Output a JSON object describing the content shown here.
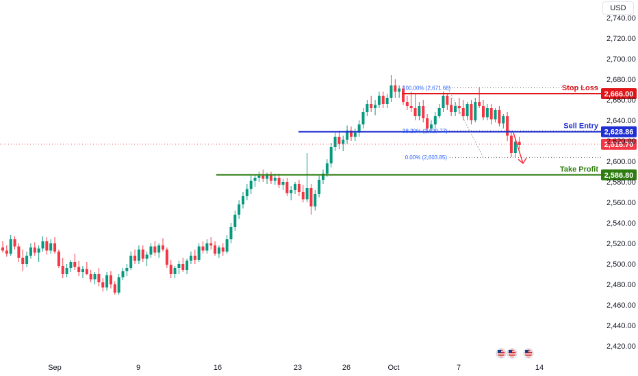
{
  "currency": "USD",
  "colors": {
    "up": "#089981",
    "down": "#f23645",
    "stop_loss": "#e0161b",
    "sell_entry": "#1f2fd1",
    "take_profit": "#2f7d11",
    "current": "#f23645",
    "fib": "#2962ff"
  },
  "chart_data": {
    "type": "candlestick",
    "title": "",
    "y_ticks": [
      "2,740.00",
      "2,720.00",
      "2,700.00",
      "2,680.00",
      "2,660.00",
      "2,640.00",
      "2,620.00",
      "2,600.00",
      "2,580.00",
      "2,560.00",
      "2,540.00",
      "2,520.00",
      "2,500.00",
      "2,480.00",
      "2,460.00",
      "2,440.00",
      "2,420.00"
    ],
    "y_tick_values": [
      2740,
      2720,
      2700,
      2680,
      2660,
      2640,
      2620,
      2600,
      2580,
      2560,
      2540,
      2520,
      2500,
      2480,
      2460,
      2440,
      2420
    ],
    "ylim": [
      2412,
      2752
    ],
    "x_ticks": [
      {
        "label": "Sep",
        "date": "2024-09-01"
      },
      {
        "label": "9",
        "date": "2024-09-09"
      },
      {
        "label": "16",
        "date": "2024-09-16"
      },
      {
        "label": "23",
        "date": "2024-09-23"
      },
      {
        "label": "26",
        "date": "2024-09-26"
      },
      {
        "label": "Oct",
        "date": "2024-10-01"
      },
      {
        "label": "7",
        "date": "2024-10-07"
      },
      {
        "label": "14",
        "date": "2024-10-14"
      }
    ],
    "grid": false,
    "levels": [
      {
        "name": "Stop Loss",
        "value": 2666.0,
        "label": "2,666.00",
        "color": "#e0161b"
      },
      {
        "name": "Sell Entry",
        "value": 2628.86,
        "label": "2,628.86",
        "color": "#1f2fd1"
      },
      {
        "name": "Take Profit",
        "value": 2586.8,
        "label": "2,586.80",
        "color": "#2f7d11"
      }
    ],
    "current_price": {
      "value": 2616.7,
      "label": "2,616.70"
    },
    "fib_levels": [
      {
        "text": "100.00% (2,671.68)",
        "value": 2671.68
      },
      {
        "text": "38.20% (2,629.77)",
        "value": 2629.77
      },
      {
        "text": "0.00% (2,603.85)",
        "value": 2603.85
      }
    ],
    "series": [
      {
        "points": [
          [
            2516,
            2522,
            2511,
            2513
          ],
          [
            2513,
            2518,
            2507,
            2510
          ],
          [
            2510,
            2528,
            2508,
            2524
          ],
          [
            2524,
            2527,
            2514,
            2517
          ],
          [
            2517,
            2520,
            2502,
            2506
          ],
          [
            2506,
            2514,
            2493,
            2500
          ],
          [
            2500,
            2512,
            2497,
            2508
          ],
          [
            2508,
            2520,
            2505,
            2516
          ],
          [
            2516,
            2521,
            2508,
            2511
          ],
          [
            2511,
            2518,
            2502,
            2515
          ],
          [
            2515,
            2527,
            2512,
            2522
          ],
          [
            2522,
            2526,
            2509,
            2513
          ],
          [
            2513,
            2524,
            2510,
            2520
          ],
          [
            2520,
            2526,
            2510,
            2512
          ],
          [
            2512,
            2514,
            2496,
            2498
          ],
          [
            2498,
            2506,
            2486,
            2490
          ],
          [
            2490,
            2500,
            2487,
            2496
          ],
          [
            2496,
            2504,
            2492,
            2502
          ],
          [
            2502,
            2510,
            2494,
            2497
          ],
          [
            2497,
            2503,
            2488,
            2492
          ],
          [
            2492,
            2498,
            2486,
            2495
          ],
          [
            2495,
            2502,
            2489,
            2490
          ],
          [
            2490,
            2494,
            2482,
            2485
          ],
          [
            2485,
            2492,
            2480,
            2490
          ],
          [
            2490,
            2496,
            2478,
            2482
          ],
          [
            2482,
            2486,
            2473,
            2477
          ],
          [
            2477,
            2492,
            2474,
            2489
          ],
          [
            2489,
            2493,
            2476,
            2480
          ],
          [
            2480,
            2483,
            2470,
            2472
          ],
          [
            2472,
            2490,
            2470,
            2487
          ],
          [
            2487,
            2496,
            2484,
            2493
          ],
          [
            2493,
            2500,
            2488,
            2496
          ],
          [
            2496,
            2512,
            2494,
            2508
          ],
          [
            2508,
            2514,
            2500,
            2503
          ],
          [
            2503,
            2518,
            2500,
            2514
          ],
          [
            2514,
            2518,
            2502,
            2505
          ],
          [
            2505,
            2512,
            2498,
            2509
          ],
          [
            2509,
            2520,
            2506,
            2517
          ],
          [
            2517,
            2522,
            2508,
            2511
          ],
          [
            2511,
            2520,
            2506,
            2518
          ],
          [
            2518,
            2525,
            2512,
            2514
          ],
          [
            2514,
            2516,
            2496,
            2499
          ],
          [
            2499,
            2504,
            2486,
            2490
          ],
          [
            2490,
            2498,
            2486,
            2496
          ],
          [
            2496,
            2503,
            2490,
            2500
          ],
          [
            2500,
            2506,
            2492,
            2494
          ],
          [
            2494,
            2505,
            2490,
            2503
          ],
          [
            2503,
            2512,
            2500,
            2508
          ],
          [
            2508,
            2514,
            2500,
            2504
          ],
          [
            2504,
            2520,
            2502,
            2517
          ],
          [
            2517,
            2522,
            2510,
            2513
          ],
          [
            2513,
            2524,
            2510,
            2520
          ],
          [
            2520,
            2526,
            2514,
            2518
          ],
          [
            2518,
            2522,
            2508,
            2510
          ],
          [
            2510,
            2518,
            2506,
            2516
          ],
          [
            2516,
            2520,
            2508,
            2512
          ],
          [
            2512,
            2528,
            2510,
            2524
          ],
          [
            2524,
            2540,
            2520,
            2536
          ],
          [
            2536,
            2552,
            2532,
            2548
          ],
          [
            2548,
            2562,
            2544,
            2558
          ],
          [
            2558,
            2570,
            2554,
            2566
          ],
          [
            2566,
            2578,
            2562,
            2573
          ],
          [
            2573,
            2586,
            2568,
            2581
          ],
          [
            2581,
            2587,
            2575,
            2584
          ],
          [
            2584,
            2590,
            2580,
            2586
          ],
          [
            2586,
            2592,
            2580,
            2583
          ],
          [
            2583,
            2589,
            2578,
            2587
          ],
          [
            2587,
            2590,
            2578,
            2581
          ],
          [
            2581,
            2588,
            2577,
            2584
          ],
          [
            2584,
            2588,
            2574,
            2577
          ],
          [
            2577,
            2583,
            2572,
            2580
          ],
          [
            2580,
            2584,
            2566,
            2569
          ],
          [
            2569,
            2576,
            2562,
            2572
          ],
          [
            2572,
            2580,
            2568,
            2578
          ],
          [
            2578,
            2582,
            2566,
            2570
          ],
          [
            2570,
            2577,
            2560,
            2563
          ],
          [
            2563,
            2608,
            2560,
            2574
          ],
          [
            2574,
            2578,
            2548,
            2556
          ],
          [
            2556,
            2572,
            2552,
            2568
          ],
          [
            2568,
            2586,
            2565,
            2582
          ],
          [
            2582,
            2592,
            2578,
            2588
          ],
          [
            2588,
            2602,
            2585,
            2598
          ],
          [
            2598,
            2618,
            2594,
            2614
          ],
          [
            2614,
            2628,
            2610,
            2624
          ],
          [
            2624,
            2630,
            2612,
            2617
          ],
          [
            2617,
            2625,
            2610,
            2621
          ],
          [
            2621,
            2635,
            2617,
            2630
          ],
          [
            2630,
            2634,
            2620,
            2624
          ],
          [
            2624,
            2632,
            2620,
            2628
          ],
          [
            2628,
            2640,
            2624,
            2636
          ],
          [
            2636,
            2652,
            2632,
            2648
          ],
          [
            2648,
            2660,
            2644,
            2656
          ],
          [
            2656,
            2664,
            2648,
            2652
          ],
          [
            2652,
            2660,
            2645,
            2655
          ],
          [
            2655,
            2668,
            2652,
            2664
          ],
          [
            2664,
            2668,
            2652,
            2656
          ],
          [
            2656,
            2666,
            2652,
            2662
          ],
          [
            2662,
            2684,
            2658,
            2674
          ],
          [
            2674,
            2680,
            2662,
            2668
          ],
          [
            2668,
            2674,
            2662,
            2671
          ],
          [
            2671,
            2674,
            2655,
            2658
          ],
          [
            2658,
            2664,
            2650,
            2654
          ],
          [
            2654,
            2668,
            2648,
            2652
          ],
          [
            2652,
            2666,
            2640,
            2644
          ],
          [
            2644,
            2658,
            2640,
            2654
          ],
          [
            2654,
            2660,
            2638,
            2642
          ],
          [
            2642,
            2646,
            2628,
            2632
          ],
          [
            2632,
            2640,
            2628,
            2636
          ],
          [
            2636,
            2648,
            2632,
            2644
          ],
          [
            2644,
            2656,
            2642,
            2652
          ],
          [
            2652,
            2668,
            2648,
            2664
          ],
          [
            2664,
            2666,
            2650,
            2655
          ],
          [
            2655,
            2662,
            2644,
            2648
          ],
          [
            2648,
            2658,
            2644,
            2654
          ],
          [
            2654,
            2662,
            2646,
            2652
          ],
          [
            2652,
            2660,
            2640,
            2644
          ],
          [
            2644,
            2658,
            2640,
            2656
          ],
          [
            2656,
            2660,
            2636,
            2640
          ],
          [
            2640,
            2662,
            2638,
            2658
          ],
          [
            2658,
            2672,
            2652,
            2654
          ],
          [
            2654,
            2660,
            2640,
            2643
          ],
          [
            2643,
            2656,
            2640,
            2652
          ],
          [
            2652,
            2656,
            2636,
            2641
          ],
          [
            2641,
            2652,
            2638,
            2650
          ],
          [
            2650,
            2654,
            2634,
            2637
          ],
          [
            2637,
            2646,
            2632,
            2644
          ],
          [
            2644,
            2648,
            2620,
            2625
          ],
          [
            2625,
            2630,
            2604,
            2608
          ],
          [
            2608,
            2622,
            2604,
            2619
          ],
          [
            2619,
            2624,
            2612,
            2616
          ]
        ]
      }
    ],
    "projection_arrow": {
      "from": 2628,
      "to": 2598
    }
  }
}
